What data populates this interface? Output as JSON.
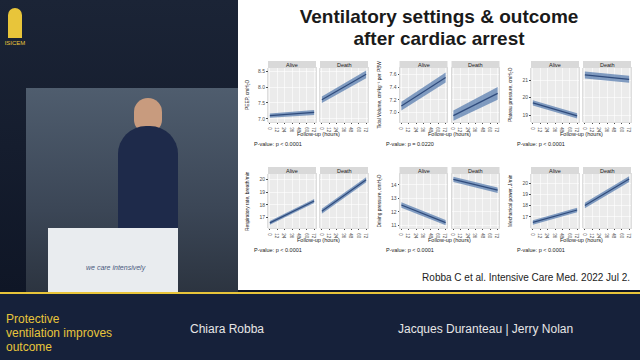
{
  "page": {
    "logo": "ISICEM",
    "podium": "we care intensively",
    "slide_title": [
      "Ventilatory settings & outcome",
      "after cardiac arrest"
    ],
    "citation": "Robba C et al. Intensive Care Med. 2022 Jul 2.",
    "session": "Protective ventilation improves outcome",
    "speaker": "Chiara Robba",
    "chairs": "Jacques Duranteau | Jerry Nolan"
  },
  "chart_data": [
    {
      "type": "line",
      "y_label": "PEEP, cmH₂O",
      "x_label": "Follow-up (hours)",
      "annotations": [
        "P-value: p < 0.0001"
      ],
      "x": [
        0,
        72
      ],
      "xlim": [
        -3,
        75
      ],
      "xticks": [
        0,
        12,
        24,
        36,
        48,
        60,
        72
      ],
      "ylim": [
        6.9,
        8.6
      ],
      "yticks": [
        {
          "value": 7,
          "label": "7.0"
        },
        7.5,
        {
          "value": 8,
          "label": "8.0"
        },
        8.5
      ],
      "grid": true,
      "series": [
        {
          "name": "Alive",
          "color": "#2f4b7c",
          "values": [
            7.1,
            7.2
          ],
          "lower": [
            7.03,
            7.12
          ],
          "upper": [
            7.17,
            7.28
          ]
        },
        {
          "name": "Death",
          "color": "#2f4b7c",
          "values": [
            7.6,
            8.4
          ],
          "lower": [
            7.5,
            8.28
          ],
          "upper": [
            7.7,
            8.52
          ]
        }
      ]
    },
    {
      "type": "line",
      "y_label": "Tidal Volume, cm³kg⁻¹ per PBW",
      "x_label": "Follow-up (hours)",
      "annotations": [
        "P-value: p = 0.0220"
      ],
      "x": [
        0,
        72
      ],
      "xlim": [
        -3,
        75
      ],
      "xticks": [
        0,
        12,
        24,
        36,
        48,
        60,
        72
      ],
      "ylim": [
        6.85,
        7.7
      ],
      "yticks": [
        {
          "value": 7,
          "label": "7.0"
        },
        7.2,
        7.4,
        7.6
      ],
      "grid": true,
      "series": [
        {
          "name": "Alive",
          "color": "#2f4b7c",
          "values": [
            7.1,
            7.55
          ],
          "lower": [
            7.03,
            7.47
          ],
          "upper": [
            7.17,
            7.63
          ]
        },
        {
          "name": "Death",
          "color": "#2f4b7c",
          "values": [
            6.95,
            7.3
          ],
          "lower": [
            6.87,
            7.2
          ],
          "upper": [
            7.03,
            7.4
          ]
        }
      ]
    },
    {
      "type": "line",
      "y_label": "Plateau pressure, cmH₂O",
      "x_label": "Follow-up (hours)",
      "annotations": [
        "P-value: p < 0.0001"
      ],
      "x": [
        0,
        72
      ],
      "xlim": [
        -3,
        75
      ],
      "xticks": [
        0,
        12,
        24,
        36,
        48,
        60,
        72
      ],
      "ylim": [
        18.6,
        21.7
      ],
      "yticks": [
        19,
        20,
        21
      ],
      "grid": true,
      "series": [
        {
          "name": "Alive",
          "color": "#2f4b7c",
          "values": [
            19.7,
            18.95
          ],
          "lower": [
            19.55,
            18.8
          ],
          "upper": [
            19.85,
            19.1
          ]
        },
        {
          "name": "Death",
          "color": "#2f4b7c",
          "values": [
            21.3,
            21.05
          ],
          "lower": [
            21.1,
            20.85
          ],
          "upper": [
            21.5,
            21.25
          ]
        }
      ]
    },
    {
      "type": "line",
      "y_label": "Respiratory rate, breath/min",
      "x_label": "Follow-up (hours)",
      "annotations": [
        "P-value: p < 0.0001"
      ],
      "x": [
        0,
        72
      ],
      "xlim": [
        -3,
        75
      ],
      "xticks": [
        0,
        12,
        24,
        36,
        48,
        60,
        72
      ],
      "ylim": [
        16.2,
        20.4
      ],
      "yticks": [
        17,
        18,
        19,
        20
      ],
      "grid": true,
      "series": [
        {
          "name": "Alive",
          "color": "#2f4b7c",
          "values": [
            16.6,
            18.3
          ],
          "lower": [
            16.45,
            18.15
          ],
          "upper": [
            16.75,
            18.45
          ]
        },
        {
          "name": "Death",
          "color": "#2f4b7c",
          "values": [
            17.5,
            19.95
          ],
          "lower": [
            17.3,
            19.75
          ],
          "upper": [
            17.7,
            20.15
          ]
        }
      ]
    },
    {
      "type": "line",
      "y_label": "Driving pressure, cmH₂O",
      "x_label": "Follow-up (hours)",
      "annotations": [
        "P-value: p < 0.0001"
      ],
      "x": [
        0,
        72
      ],
      "xlim": [
        -3,
        75
      ],
      "xticks": [
        0,
        12,
        24,
        36,
        48,
        60,
        72
      ],
      "ylim": [
        10.8,
        14.8
      ],
      "yticks": [
        11,
        12,
        13,
        14
      ],
      "grid": true,
      "series": [
        {
          "name": "Alive",
          "color": "#2f4b7c",
          "values": [
            12.5,
            11.2
          ],
          "lower": [
            12.3,
            11.0
          ],
          "upper": [
            12.7,
            11.4
          ]
        },
        {
          "name": "Death",
          "color": "#2f4b7c",
          "values": [
            14.4,
            13.6
          ],
          "lower": [
            14.2,
            13.4
          ],
          "upper": [
            14.6,
            13.8
          ]
        }
      ]
    },
    {
      "type": "line",
      "y_label": "Mechanical power, J/min",
      "x_label": "Follow-up (hours)",
      "annotations": [
        "P-value: p < 0.0001"
      ],
      "x": [
        0,
        72
      ],
      "xlim": [
        -3,
        75
      ],
      "xticks": [
        0,
        12,
        24,
        36,
        48,
        60,
        72
      ],
      "ylim": [
        16.0,
        20.8
      ],
      "yticks": [
        17,
        18,
        19,
        20
      ],
      "grid": true,
      "series": [
        {
          "name": "Alive",
          "color": "#2f4b7c",
          "values": [
            16.5,
            17.6
          ],
          "lower": [
            16.3,
            17.4
          ],
          "upper": [
            16.7,
            17.8
          ]
        },
        {
          "name": "Death",
          "color": "#2f4b7c",
          "values": [
            18.0,
            20.35
          ],
          "lower": [
            17.75,
            20.1
          ],
          "upper": [
            18.25,
            20.6
          ]
        }
      ]
    }
  ]
}
